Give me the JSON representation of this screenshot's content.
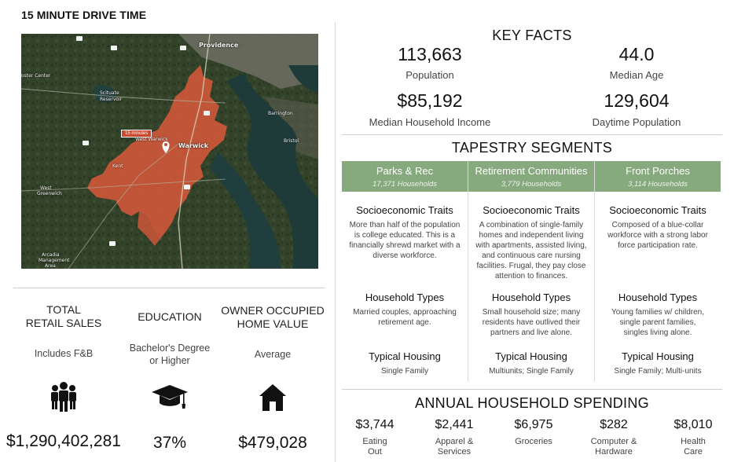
{
  "header": {
    "title": "15 MINUTE DRIVE TIME"
  },
  "map": {
    "labels": {
      "providence": "Providence",
      "foster_center": "oster Center",
      "scituate": "Scituate",
      "reservoir": "Reservoir",
      "barrington": "Barrington",
      "bristol": "Bristol",
      "west_warwick": "West Warwick",
      "warwick": "Warwick",
      "kent": "Kent",
      "west_greenwich": "West",
      "west_greenwich2": "Greenwich",
      "arcadia": "Arcadia",
      "arcadia2": "Management",
      "arcadia3": "Area"
    },
    "drive_tag": "15 minutes",
    "colors": {
      "drive_area": "#d4583a",
      "land": "#34432b",
      "water": "#1f3d3c"
    }
  },
  "left_stats": [
    {
      "head_line1": "TOTAL",
      "head_line2": "RETAIL SALES",
      "sub_line1": "Includes F&B",
      "sub_line2": "",
      "icon": "people-group-icon",
      "value": "$1,290,402,281"
    },
    {
      "head_line1": "EDUCATION",
      "head_line2": "",
      "sub_line1": "Bachelor's Degree",
      "sub_line2": "or Higher",
      "icon": "graduation-cap-icon",
      "value": "37%"
    },
    {
      "head_line1": "OWNER OCCUPIED",
      "head_line2": "HOME VALUE",
      "sub_line1": "Average",
      "sub_line2": "",
      "icon": "house-icon",
      "value": "$479,028"
    }
  ],
  "key_facts": {
    "title": "KEY FACTS",
    "items": [
      {
        "value": "113,663",
        "label": "Population"
      },
      {
        "value": "44.0",
        "label": "Median Age"
      },
      {
        "value": "$85,192",
        "label": "Median Household Income"
      },
      {
        "value": "129,604",
        "label": "Daytime Population"
      }
    ]
  },
  "tapestry": {
    "title": "TAPESTRY SEGMENTS",
    "header_color": "#86a97e",
    "segments": [
      {
        "name": "Parks & Rec",
        "households": "17,371 Households",
        "socio_head": "Socioeconomic Traits",
        "socio_lines": [
          "More than half of the population",
          "is college educated. This is a",
          "financially shrewd market with a",
          "diverse workforce."
        ],
        "hh_head": "Household Types",
        "hh_lines": [
          "Married couples, approaching",
          "retirement age."
        ],
        "housing_head": "Typical Housing",
        "housing_lines": [
          "Single Family"
        ]
      },
      {
        "name": "Retirement Communities",
        "households": "3,779 Households",
        "socio_head": "Socioeconomic Traits",
        "socio_lines": [
          "A combination of single-family",
          "homes and independent living",
          "with apartments, assisted living,",
          "and continuous care nursing",
          "facilities.  Frugal, they pay close",
          "attention to finances."
        ],
        "hh_head": "Household Types",
        "hh_lines": [
          "Small household size; many",
          "residents have outlived their",
          "partners and live alone."
        ],
        "housing_head": "Typical Housing",
        "housing_lines": [
          "Multiunits; Single Family"
        ]
      },
      {
        "name": "Front Porches",
        "households": "3,114 Households",
        "socio_head": "Socioeconomic Traits",
        "socio_lines": [
          "Composed of a blue-collar",
          "workforce with a strong labor",
          "force participation rate."
        ],
        "hh_head": "Household Types",
        "hh_lines": [
          "Young families w/ children,",
          "single parent families,",
          "singles living alone."
        ],
        "housing_head": "Typical Housing",
        "housing_lines": [
          "Single Family; Multi-units"
        ]
      }
    ]
  },
  "spending": {
    "title": "ANNUAL HOUSEHOLD SPENDING",
    "items": [
      {
        "value": "$3,744",
        "label_line1": "Eating",
        "label_line2": "Out"
      },
      {
        "value": "$2,441",
        "label_line1": "Apparel &",
        "label_line2": "Services"
      },
      {
        "value": "$6,975",
        "label_line1": "Groceries",
        "label_line2": ""
      },
      {
        "value": "$282",
        "label_line1": "Computer &",
        "label_line2": "Hardware"
      },
      {
        "value": "$8,010",
        "label_line1": "Health",
        "label_line2": "Care"
      }
    ]
  }
}
